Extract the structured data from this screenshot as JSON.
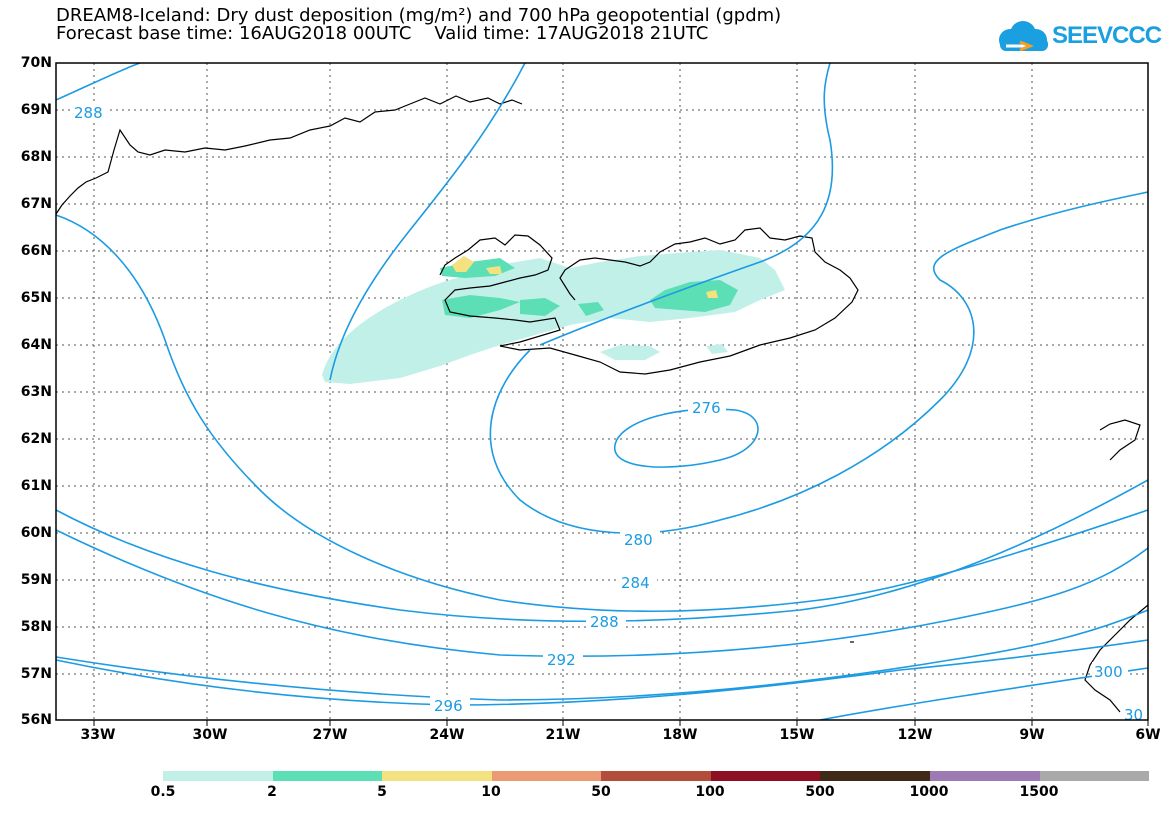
{
  "title_line1": "DREAM8-Iceland: Dry dust deposition (mg/m²) and 700 hPa geopotential (gpdm)",
  "title_line2": "Forecast base time: 16AUG2018 00UTC    Valid time: 17AUG2018 21UTC",
  "logo_text": "SEEVCCC",
  "lat_labels": [
    "70N",
    "69N",
    "68N",
    "67N",
    "66N",
    "65N",
    "64N",
    "63N",
    "62N",
    "61N",
    "60N",
    "59N",
    "58N",
    "57N",
    "56N"
  ],
  "lon_labels": [
    "33W",
    "30W",
    "27W",
    "24W",
    "21W",
    "18W",
    "15W",
    "12W",
    "9W",
    "6W"
  ],
  "contour_labels": {
    "c288_nw": "288",
    "c276": "276",
    "c280": "280",
    "c284": "284",
    "c288": "288",
    "c292": "292",
    "c296": "296",
    "c300": "300",
    "c304": "30"
  },
  "legend": {
    "colors": [
      "#c1f0e9",
      "#5ddfb5",
      "#f3e27f",
      "#ec9a73",
      "#b24d3c",
      "#8d0f24",
      "#3e2a16",
      "#9b7bb2",
      "#a9a9a9"
    ],
    "labels": [
      "0.5",
      "2",
      "5",
      "10",
      "50",
      "100",
      "500",
      "1000",
      "1500"
    ]
  },
  "colors": {
    "contour": "#1c9be3",
    "coast": "#000000"
  }
}
